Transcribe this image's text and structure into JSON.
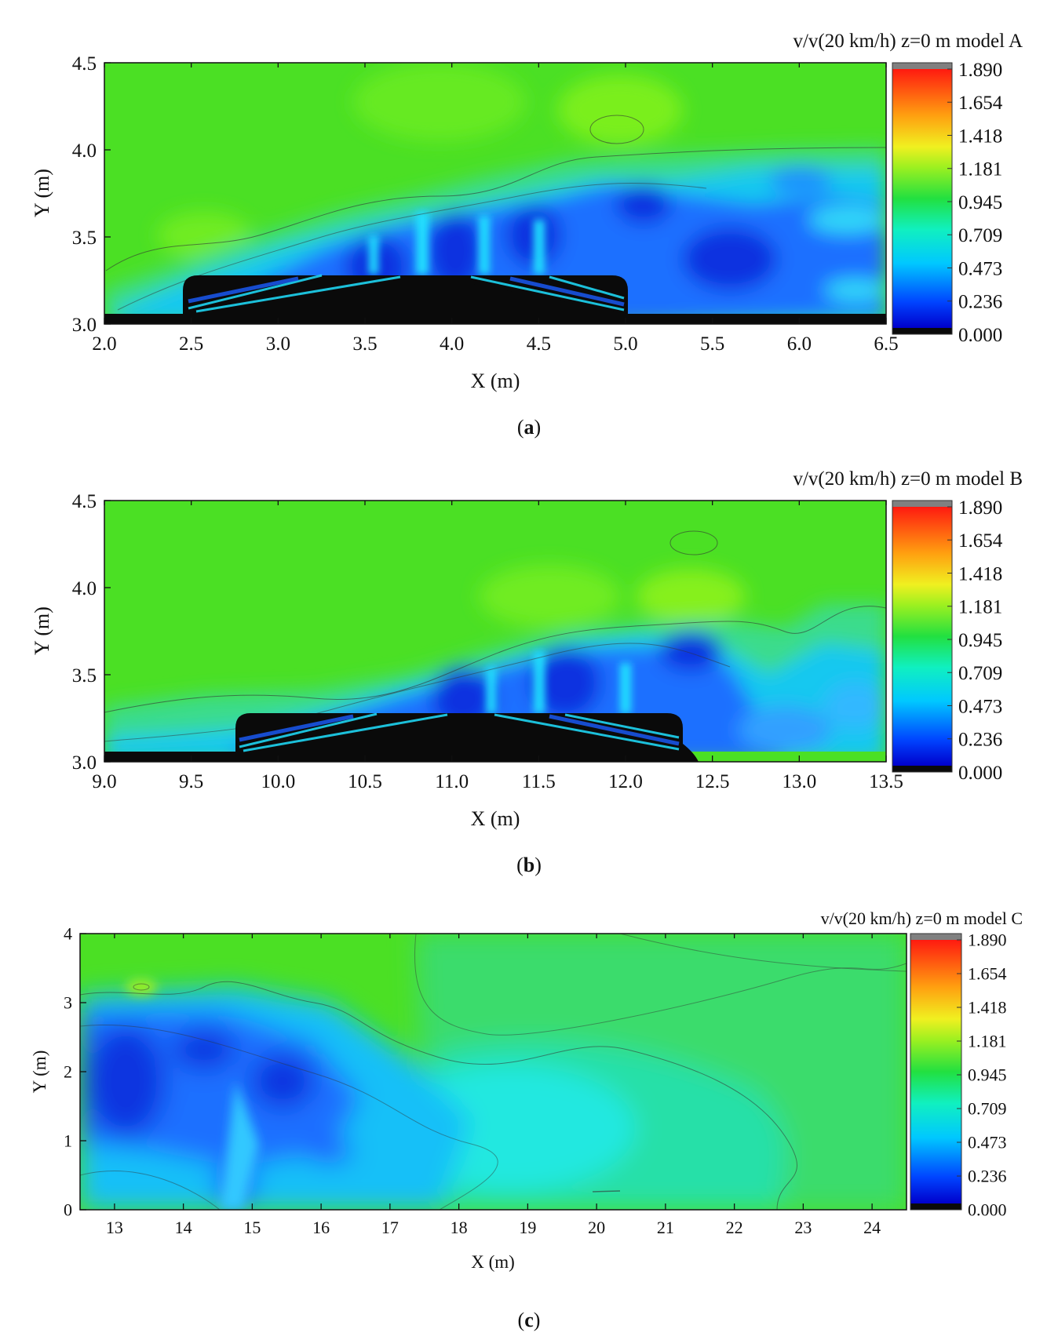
{
  "colorbar": {
    "ticks": [
      "1.890",
      "1.654",
      "1.418",
      "1.181",
      "0.945",
      "0.709",
      "0.473",
      "0.236",
      "0.000"
    ],
    "colors": [
      "#0a0a0a",
      "#0033ff",
      "#1f8fff",
      "#00e6ff",
      "#3bff9a",
      "#4be024",
      "#9bef19",
      "#ffff20",
      "#ff9a10",
      "#ff2a10",
      "#808080"
    ]
  },
  "chart_data": [
    {
      "type": "heatmap",
      "title": "v/v(20 km/h) z=0 m model A",
      "xlabel": "X (m)",
      "ylabel": "Y (m)",
      "xlim": [
        2.0,
        6.5
      ],
      "ylim": [
        3.0,
        4.5
      ],
      "x_ticks": [
        "2.0",
        "2.5",
        "3.0",
        "3.5",
        "4.0",
        "4.5",
        "5.0",
        "5.5",
        "6.0",
        "6.5"
      ],
      "y_ticks": [
        "3.0",
        "3.5",
        "4.0",
        "4.5"
      ],
      "colorbar_range": [
        0.0,
        1.89
      ],
      "caption": "a",
      "structure_x": [
        2.45,
        5.0
      ],
      "structure_peak": [
        3.7,
        3.28
      ]
    },
    {
      "type": "heatmap",
      "title": "v/v(20 km/h) z=0 m model B",
      "xlabel": "X (m)",
      "ylabel": "Y (m)",
      "xlim": [
        9.0,
        13.5
      ],
      "ylim": [
        3.0,
        4.5
      ],
      "x_ticks": [
        "9.0",
        "9.5",
        "10.0",
        "10.5",
        "11.0",
        "11.5",
        "12.0",
        "12.5",
        "13.0",
        "13.5"
      ],
      "y_ticks": [
        "3.0",
        "3.5",
        "4.0",
        "4.5"
      ],
      "colorbar_range": [
        0.0,
        1.89
      ],
      "caption": "b",
      "structure_x": [
        9.75,
        12.3
      ],
      "structure_peak": [
        11.0,
        3.28
      ]
    },
    {
      "type": "heatmap",
      "title": "v/v(20 km/h) z=0 m model C",
      "xlabel": "X (m)",
      "ylabel": "Y (m)",
      "xlim": [
        12.5,
        24.5
      ],
      "ylim": [
        0,
        4
      ],
      "x_ticks": [
        "13",
        "14",
        "15",
        "16",
        "17",
        "18",
        "19",
        "20",
        "21",
        "22",
        "23",
        "24"
      ],
      "y_ticks": [
        "0",
        "1",
        "2",
        "3",
        "4"
      ],
      "colorbar_range": [
        0.0,
        1.89
      ],
      "caption": "c"
    }
  ]
}
